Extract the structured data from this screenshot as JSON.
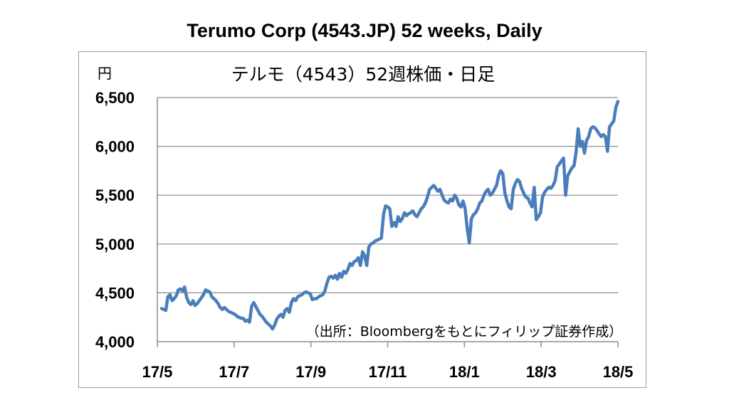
{
  "outer_title": "Terumo Corp  (4543.JP) 52 weeks, Daily",
  "chart_data": {
    "type": "line",
    "title": "テルモ（4543）52週株価・日足",
    "yunit": "円",
    "source_note": "（出所：Bloombergをもとにフィリップ証券作成）",
    "ylim": [
      4000,
      6500
    ],
    "yticks": [
      "4,000",
      "4,500",
      "5,000",
      "5,500",
      "6,000",
      "6,500"
    ],
    "ytick_values": [
      4000,
      4500,
      5000,
      5500,
      6000,
      6500
    ],
    "xticks": [
      "17/5",
      "17/7",
      "17/9",
      "17/11",
      "18/1",
      "18/3",
      "18/5"
    ],
    "grid": "horizontal",
    "legend": "none",
    "line_color": "#4a7ebb",
    "series": [
      {
        "values": [
          4340,
          4330,
          4320,
          4460,
          4480,
          4420,
          4440,
          4470,
          4530,
          4540,
          4520,
          4560,
          4450,
          4400,
          4380,
          4420,
          4370,
          4390,
          4420,
          4450,
          4480,
          4530,
          4520,
          4510,
          4460,
          4440,
          4420,
          4390,
          4350,
          4330,
          4350,
          4330,
          4310,
          4300,
          4290,
          4280,
          4260,
          4250,
          4240,
          4240,
          4210,
          4220,
          4200,
          4360,
          4400,
          4360,
          4320,
          4280,
          4260,
          4230,
          4200,
          4180,
          4160,
          4130,
          4170,
          4230,
          4260,
          4280,
          4250,
          4320,
          4340,
          4300,
          4400,
          4440,
          4420,
          4460,
          4470,
          4480,
          4500,
          4510,
          4500,
          4490,
          4430,
          4440,
          4440,
          4460,
          4470,
          4480,
          4520,
          4600,
          4660,
          4670,
          4650,
          4680,
          4640,
          4700,
          4660,
          4720,
          4700,
          4740,
          4800,
          4780,
          4820,
          4830,
          4860,
          4780,
          4920,
          4880,
          4780,
          4970,
          5000,
          5010,
          5030,
          5040,
          5050,
          5060,
          5300,
          5390,
          5380,
          5360,
          5180,
          5220,
          5180,
          5280,
          5230,
          5260,
          5320,
          5290,
          5310,
          5320,
          5340,
          5300,
          5280,
          5320,
          5360,
          5380,
          5420,
          5480,
          5560,
          5580,
          5600,
          5570,
          5540,
          5560,
          5500,
          5450,
          5430,
          5420,
          5460,
          5440,
          5500,
          5470,
          5400,
          5380,
          5440,
          5360,
          5160,
          5010,
          5260,
          5300,
          5320,
          5360,
          5420,
          5440,
          5500,
          5540,
          5560,
          5500,
          5520,
          5560,
          5600,
          5700,
          5750,
          5720,
          5520,
          5440,
          5380,
          5360,
          5560,
          5620,
          5660,
          5640,
          5570,
          5520,
          5480,
          5470,
          5420,
          5380,
          5580,
          5250,
          5280,
          5320,
          5480,
          5530,
          5560,
          5580,
          5570,
          5600,
          5650,
          5790,
          5820,
          5850,
          5880,
          5500,
          5700,
          5740,
          5780,
          5800,
          5940,
          6180,
          6000,
          6050,
          5930,
          6060,
          6100,
          6180,
          6200,
          6190,
          6160,
          6130,
          6100,
          6120,
          6100,
          5950,
          6200,
          6230,
          6260,
          6400,
          6460
        ]
      }
    ]
  }
}
